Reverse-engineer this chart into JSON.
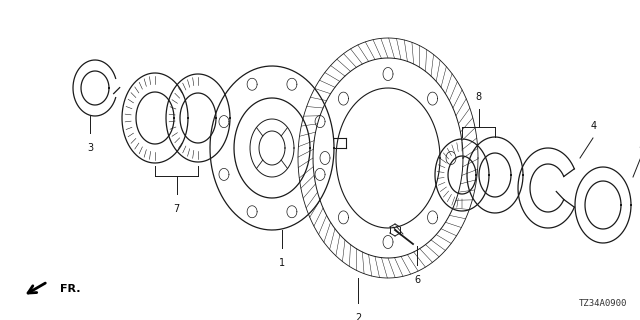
{
  "background_color": "#ffffff",
  "part_number": "TZ34A0900",
  "line_color": "#1a1a1a",
  "text_color": "#111111",
  "fig_w": 6.4,
  "fig_h": 3.2,
  "dpi": 100
}
